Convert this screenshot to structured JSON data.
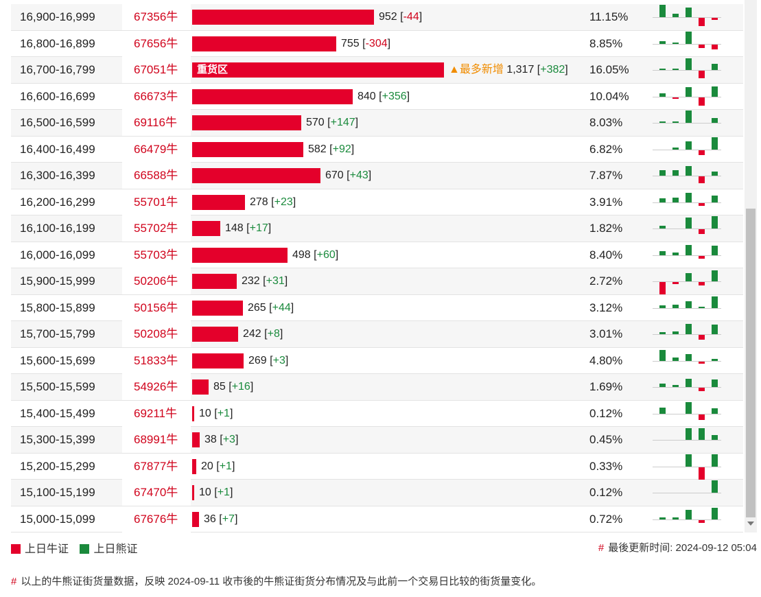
{
  "rows": [
    {
      "range": "16,900-16,999",
      "code": "67356牛",
      "value": 952,
      "value_text": "952",
      "change_text": "-44",
      "change_sign": "neg",
      "pct": "11.15%",
      "note": "",
      "bar_label": "",
      "spark": [
        {
          "h": 18,
          "c": "g"
        },
        {
          "h": 5,
          "c": "g"
        },
        {
          "h": 14,
          "c": "g"
        },
        {
          "h": -12,
          "c": "r"
        },
        {
          "h": -3,
          "c": "r"
        }
      ]
    },
    {
      "range": "16,800-16,899",
      "code": "67656牛",
      "value": 755,
      "value_text": "755",
      "change_text": "-304",
      "change_sign": "neg",
      "pct": "8.85%",
      "note": "",
      "bar_label": "",
      "spark": [
        {
          "h": 4,
          "c": "g"
        },
        {
          "h": 2,
          "c": "g"
        },
        {
          "h": 18,
          "c": "g"
        },
        {
          "h": -5,
          "c": "r"
        },
        {
          "h": -7,
          "c": "r"
        }
      ]
    },
    {
      "range": "16,700-16,799",
      "code": "67051牛",
      "value": 1317,
      "value_text": "1,317",
      "change_text": "+382",
      "change_sign": "pos",
      "pct": "16.05%",
      "note": "▲最多新增",
      "bar_label": "重货区",
      "spark": [
        {
          "h": 2,
          "c": "g"
        },
        {
          "h": 2,
          "c": "g"
        },
        {
          "h": 17,
          "c": "g"
        },
        {
          "h": -11,
          "c": "r"
        },
        {
          "h": 9,
          "c": "g"
        }
      ]
    },
    {
      "range": "16,600-16,699",
      "code": "66673牛",
      "value": 840,
      "value_text": "840",
      "change_text": "+356",
      "change_sign": "pos",
      "pct": "10.04%",
      "note": "",
      "bar_label": "",
      "spark": [
        {
          "h": 5,
          "c": "g"
        },
        {
          "h": -2,
          "c": "r"
        },
        {
          "h": 14,
          "c": "g"
        },
        {
          "h": -12,
          "c": "r"
        },
        {
          "h": 15,
          "c": "g"
        }
      ]
    },
    {
      "range": "16,500-16,599",
      "code": "69116牛",
      "value": 570,
      "value_text": "570",
      "change_text": "+147",
      "change_sign": "pos",
      "pct": "8.03%",
      "note": "",
      "bar_label": "",
      "spark": [
        {
          "h": 2,
          "c": "g"
        },
        {
          "h": 2,
          "c": "g"
        },
        {
          "h": 18,
          "c": "g"
        },
        {
          "h": 0,
          "c": "g"
        },
        {
          "h": 7,
          "c": "g"
        }
      ]
    },
    {
      "range": "16,400-16,499",
      "code": "66479牛",
      "value": 582,
      "value_text": "582",
      "change_text": "+92",
      "change_sign": "pos",
      "pct": "6.82%",
      "note": "",
      "bar_label": "",
      "spark": [
        {
          "h": 0,
          "c": "g"
        },
        {
          "h": 3,
          "c": "g"
        },
        {
          "h": 12,
          "c": "g"
        },
        {
          "h": -7,
          "c": "r"
        },
        {
          "h": 18,
          "c": "g"
        }
      ]
    },
    {
      "range": "16,300-16,399",
      "code": "66588牛",
      "value": 670,
      "value_text": "670",
      "change_text": "+43",
      "change_sign": "pos",
      "pct": "7.87%",
      "note": "",
      "bar_label": "",
      "spark": [
        {
          "h": 8,
          "c": "g"
        },
        {
          "h": 8,
          "c": "g"
        },
        {
          "h": 14,
          "c": "g"
        },
        {
          "h": -10,
          "c": "r"
        },
        {
          "h": 6,
          "c": "g"
        }
      ]
    },
    {
      "range": "16,200-16,299",
      "code": "55701牛",
      "value": 278,
      "value_text": "278",
      "change_text": "+23",
      "change_sign": "pos",
      "pct": "3.91%",
      "note": "",
      "bar_label": "",
      "spark": [
        {
          "h": 6,
          "c": "g"
        },
        {
          "h": 7,
          "c": "g"
        },
        {
          "h": 14,
          "c": "g"
        },
        {
          "h": -4,
          "c": "r"
        },
        {
          "h": 10,
          "c": "g"
        }
      ]
    },
    {
      "range": "16,100-16,199",
      "code": "55702牛",
      "value": 148,
      "value_text": "148",
      "change_text": "+17",
      "change_sign": "pos",
      "pct": "1.82%",
      "note": "",
      "bar_label": "",
      "spark": [
        {
          "h": 4,
          "c": "g"
        },
        {
          "h": 0,
          "c": "g"
        },
        {
          "h": 16,
          "c": "g"
        },
        {
          "h": -7,
          "c": "r"
        },
        {
          "h": 18,
          "c": "g"
        }
      ]
    },
    {
      "range": "16,000-16,099",
      "code": "55703牛",
      "value": 498,
      "value_text": "498",
      "change_text": "+60",
      "change_sign": "pos",
      "pct": "8.40%",
      "note": "",
      "bar_label": "",
      "spark": [
        {
          "h": 6,
          "c": "g"
        },
        {
          "h": 4,
          "c": "g"
        },
        {
          "h": 15,
          "c": "g"
        },
        {
          "h": -4,
          "c": "r"
        },
        {
          "h": 14,
          "c": "g"
        }
      ]
    },
    {
      "range": "15,900-15,999",
      "code": "50206牛",
      "value": 232,
      "value_text": "232",
      "change_text": "+31",
      "change_sign": "pos",
      "pct": "2.72%",
      "note": "",
      "bar_label": "",
      "spark": [
        {
          "h": -18,
          "c": "r"
        },
        {
          "h": -3,
          "c": "r"
        },
        {
          "h": 12,
          "c": "g"
        },
        {
          "h": -5,
          "c": "r"
        },
        {
          "h": 16,
          "c": "g"
        }
      ]
    },
    {
      "range": "15,800-15,899",
      "code": "50156牛",
      "value": 265,
      "value_text": "265",
      "change_text": "+44",
      "change_sign": "pos",
      "pct": "3.12%",
      "note": "",
      "bar_label": "",
      "spark": [
        {
          "h": 4,
          "c": "g"
        },
        {
          "h": 5,
          "c": "g"
        },
        {
          "h": 10,
          "c": "g"
        },
        {
          "h": 2,
          "c": "g"
        },
        {
          "h": 17,
          "c": "g"
        }
      ]
    },
    {
      "range": "15,700-15,799",
      "code": "50208牛",
      "value": 242,
      "value_text": "242",
      "change_text": "+8",
      "change_sign": "pos",
      "pct": "3.01%",
      "note": "",
      "bar_label": "",
      "spark": [
        {
          "h": 3,
          "c": "g"
        },
        {
          "h": 4,
          "c": "g"
        },
        {
          "h": 15,
          "c": "g"
        },
        {
          "h": -7,
          "c": "r"
        },
        {
          "h": 14,
          "c": "g"
        }
      ]
    },
    {
      "range": "15,600-15,699",
      "code": "51833牛",
      "value": 269,
      "value_text": "269",
      "change_text": "+3",
      "change_sign": "pos",
      "pct": "4.80%",
      "note": "",
      "bar_label": "",
      "spark": [
        {
          "h": 16,
          "c": "g"
        },
        {
          "h": 5,
          "c": "g"
        },
        {
          "h": 10,
          "c": "g"
        },
        {
          "h": -3,
          "c": "r"
        },
        {
          "h": 3,
          "c": "g"
        }
      ]
    },
    {
      "range": "15,500-15,599",
      "code": "54926牛",
      "value": 85,
      "value_text": "85",
      "change_text": "+16",
      "change_sign": "pos",
      "pct": "1.69%",
      "note": "",
      "bar_label": "",
      "spark": [
        {
          "h": 5,
          "c": "g"
        },
        {
          "h": 3,
          "c": "g"
        },
        {
          "h": 12,
          "c": "g"
        },
        {
          "h": -5,
          "c": "r"
        },
        {
          "h": 11,
          "c": "g"
        }
      ]
    },
    {
      "range": "15,400-15,499",
      "code": "69211牛",
      "value": 10,
      "value_text": "10",
      "change_text": "+1",
      "change_sign": "pos",
      "pct": "0.12%",
      "note": "",
      "bar_label": "",
      "spark": [
        {
          "h": 9,
          "c": "g"
        },
        {
          "h": 0,
          "c": "g"
        },
        {
          "h": 17,
          "c": "g"
        },
        {
          "h": -8,
          "c": "r"
        },
        {
          "h": 8,
          "c": "g"
        }
      ]
    },
    {
      "range": "15,300-15,399",
      "code": "68991牛",
      "value": 38,
      "value_text": "38",
      "change_text": "+3",
      "change_sign": "pos",
      "pct": "0.45%",
      "note": "",
      "bar_label": "",
      "spark": [
        {
          "h": 0,
          "c": "g"
        },
        {
          "h": 0,
          "c": "g"
        },
        {
          "h": 17,
          "c": "g"
        },
        {
          "h": 17,
          "c": "g"
        },
        {
          "h": 7,
          "c": "g"
        }
      ]
    },
    {
      "range": "15,200-15,299",
      "code": "67877牛",
      "value": 20,
      "value_text": "20",
      "change_text": "+1",
      "change_sign": "pos",
      "pct": "0.33%",
      "note": "",
      "bar_label": "",
      "spark": [
        {
          "h": 0,
          "c": "g"
        },
        {
          "h": 0,
          "c": "g"
        },
        {
          "h": 18,
          "c": "g"
        },
        {
          "h": -18,
          "c": "r"
        },
        {
          "h": 18,
          "c": "g"
        }
      ]
    },
    {
      "range": "15,100-15,199",
      "code": "67470牛",
      "value": 10,
      "value_text": "10",
      "change_text": "+1",
      "change_sign": "pos",
      "pct": "0.12%",
      "note": "",
      "bar_label": "",
      "spark": [
        {
          "h": 0,
          "c": "g"
        },
        {
          "h": 0,
          "c": "g"
        },
        {
          "h": 0,
          "c": "g"
        },
        {
          "h": 0,
          "c": "g"
        },
        {
          "h": 18,
          "c": "g"
        }
      ]
    },
    {
      "range": "15,000-15,099",
      "code": "67676牛",
      "value": 36,
      "value_text": "36",
      "change_text": "+7",
      "change_sign": "pos",
      "pct": "0.72%",
      "note": "",
      "bar_label": "",
      "spark": [
        {
          "h": 3,
          "c": "g"
        },
        {
          "h": 3,
          "c": "g"
        },
        {
          "h": 14,
          "c": "g"
        },
        {
          "h": -4,
          "c": "r"
        },
        {
          "h": 17,
          "c": "g"
        }
      ]
    }
  ],
  "bar_scale_max": 1317,
  "legend": {
    "bull_label": "上日牛证",
    "bear_label": "上日熊证",
    "bull_color": "#e4002b",
    "bear_color": "#1a8a3c"
  },
  "updated": {
    "hash": "#",
    "label": "最後更新时间: 2024-09-12 05:04"
  },
  "footnote": {
    "hash": "#",
    "text": "以上的牛熊证街货量数据，反映 2024-09-11 收市後的牛熊证街货分布情况及与此前一个交易日比较的街货量变化。"
  }
}
